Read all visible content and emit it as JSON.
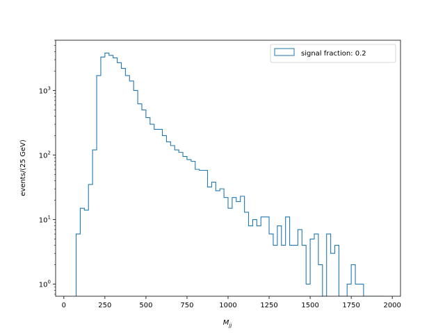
{
  "chart_data": {
    "type": "histogram",
    "title": "",
    "xlabel_main": "M",
    "xlabel_sub": "jj",
    "ylabel": "events/(25 GeV)",
    "xlim": [
      -50,
      2050
    ],
    "ylim": [
      0.65,
      6000
    ],
    "yscale": "log",
    "grid": false,
    "legend_position": "top-right",
    "bin_width": 25,
    "series": [
      {
        "name": "signal fraction: 0.2",
        "color": "#1f77b4",
        "bin_edges_start": 75,
        "counts": [
          6,
          15,
          14,
          35,
          120,
          1700,
          3300,
          3800,
          3500,
          3200,
          2700,
          2200,
          1700,
          1400,
          1000,
          620,
          500,
          380,
          300,
          250,
          250,
          200,
          160,
          140,
          120,
          110,
          95,
          85,
          80,
          60,
          58,
          58,
          32,
          38,
          28,
          30,
          22,
          15,
          22,
          19,
          23,
          13,
          8,
          10,
          8,
          11,
          11,
          6,
          4,
          8,
          4,
          11,
          4,
          4,
          7,
          4,
          1,
          5,
          6,
          2,
          0,
          6,
          3,
          4,
          0,
          0,
          1,
          2,
          1,
          1,
          0,
          0,
          0,
          0,
          0
        ]
      }
    ],
    "x_ticks": [
      0,
      250,
      500,
      750,
      1000,
      1250,
      1500,
      1750,
      2000
    ],
    "x_tick_labels": [
      "0",
      "250",
      "500",
      "750",
      "1000",
      "1250",
      "1500",
      "1750",
      "2000"
    ],
    "y_ticks": [
      1,
      10,
      100,
      1000
    ],
    "y_tick_base": "10",
    "y_tick_exponents": [
      "0",
      "1",
      "2",
      "3"
    ]
  }
}
